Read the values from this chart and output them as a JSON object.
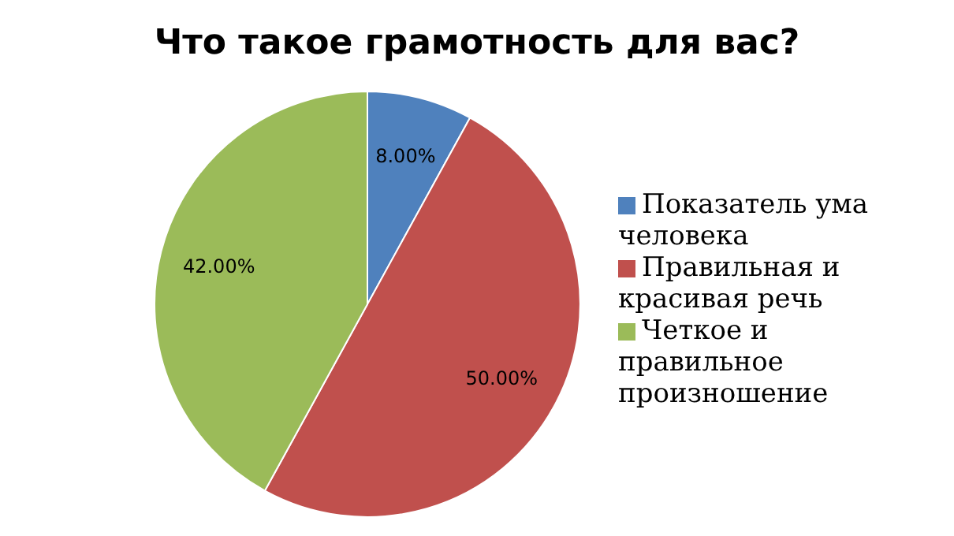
{
  "chart_data": {
    "type": "pie",
    "title": "Что такое грамотность для вас?",
    "categories": [
      "Показатель ума человека",
      "Правильная и красивая речь",
      "Четкое и правильное произношение"
    ],
    "values": [
      8,
      50,
      42
    ],
    "value_labels": [
      "8.00%",
      "50.00%",
      "42.00%"
    ],
    "colors": [
      "#4f81bd",
      "#c0504d",
      "#9bbb59"
    ],
    "legend": "right"
  }
}
